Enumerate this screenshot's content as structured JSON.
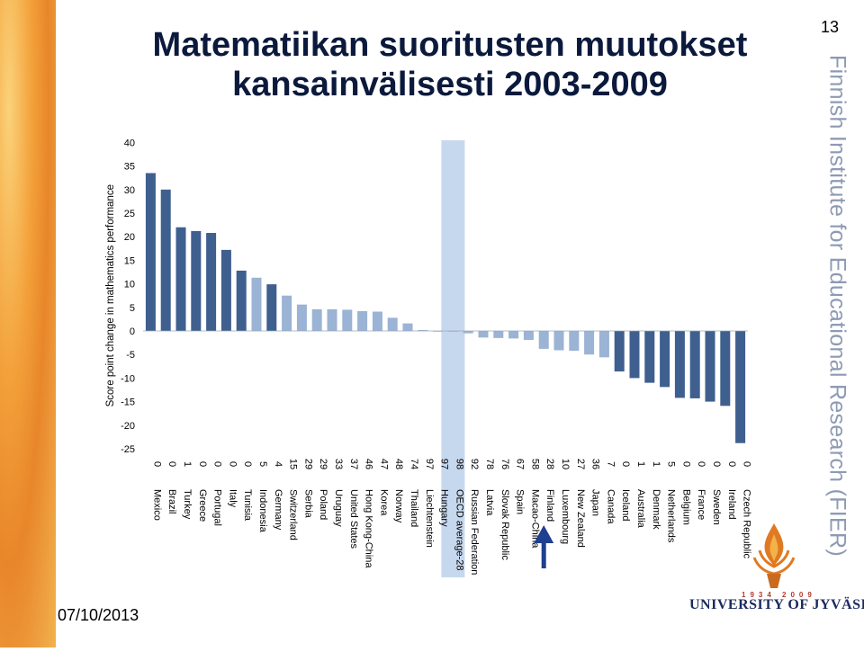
{
  "title_line1": "Matematiikan suoritusten muutokset",
  "title_line2": "kansainvälisesti 2003-2009",
  "page_number": "13",
  "date": "07/10/2013",
  "side_text": "Finnish Institute for Educational Research (FIER)",
  "logo": {
    "years": "1934  2009",
    "university": "UNIVERSITY OF JYVÄSKYLÄ"
  },
  "colors": {
    "dark_bar": "#3f5f8f",
    "light_bar": "#9bb3d4",
    "highlight": "#c6d8ee",
    "arrow": "#1f3f8f",
    "title": "#0b1a3c"
  },
  "chart_data": {
    "type": "bar",
    "ylabel": "Score point change in mathematics performance",
    "ylim": [
      -25,
      40
    ],
    "yticks": [
      40,
      35,
      30,
      25,
      20,
      15,
      10,
      5,
      0,
      -5,
      -10,
      -15,
      -20,
      -25
    ],
    "highlighted_category": "OECD average-28",
    "arrow_points_to": "Finland",
    "bars": [
      {
        "country": "Mexico",
        "num": "0",
        "value": 33.5,
        "significant": true
      },
      {
        "country": "Brazil",
        "num": "0",
        "value": 30,
        "significant": true
      },
      {
        "country": "Turkey",
        "num": "1",
        "value": 22,
        "significant": true
      },
      {
        "country": "Greece",
        "num": "0",
        "value": 21.2,
        "significant": true
      },
      {
        "country": "Portugal",
        "num": "0",
        "value": 20.8,
        "significant": true
      },
      {
        "country": "Italy",
        "num": "0",
        "value": 17.2,
        "significant": true
      },
      {
        "country": "Tunisia",
        "num": "0",
        "value": 12.8,
        "significant": true
      },
      {
        "country": "Indonesia",
        "num": "5",
        "value": 11.3,
        "significant": false
      },
      {
        "country": "Germany",
        "num": "4",
        "value": 9.9,
        "significant": true
      },
      {
        "country": "Switzerland",
        "num": "15",
        "value": 7.5,
        "significant": false
      },
      {
        "country": "Serbia",
        "num": "29",
        "value": 5.6,
        "significant": false
      },
      {
        "country": "Poland",
        "num": "29",
        "value": 4.6,
        "significant": false
      },
      {
        "country": "Uruguay",
        "num": "33",
        "value": 4.6,
        "significant": false
      },
      {
        "country": "United States",
        "num": "37",
        "value": 4.5,
        "significant": false
      },
      {
        "country": "Hong Kong-China",
        "num": "46",
        "value": 4.2,
        "significant": false
      },
      {
        "country": "Korea",
        "num": "47",
        "value": 4.1,
        "significant": false
      },
      {
        "country": "Norway",
        "num": "48",
        "value": 2.8,
        "significant": false
      },
      {
        "country": "Thailand",
        "num": "74",
        "value": 1.6,
        "significant": false
      },
      {
        "country": "Liechtenstein",
        "num": "97",
        "value": 0.2,
        "significant": false
      },
      {
        "country": "Hungary",
        "num": "97",
        "value": 0,
        "significant": false
      },
      {
        "country": "OECD average-28",
        "num": "98",
        "value": 0,
        "significant": false
      },
      {
        "country": "Russian Federation",
        "num": "92",
        "value": -0.5,
        "significant": false
      },
      {
        "country": "Latvia",
        "num": "78",
        "value": -1.4,
        "significant": false
      },
      {
        "country": "Slovak Republic",
        "num": "76",
        "value": -1.5,
        "significant": false
      },
      {
        "country": "Spain",
        "num": "67",
        "value": -1.6,
        "significant": false
      },
      {
        "country": "Macao-China",
        "num": "58",
        "value": -1.9,
        "significant": false
      },
      {
        "country": "Finland",
        "num": "28",
        "value": -3.8,
        "significant": false
      },
      {
        "country": "Luxembourg",
        "num": "10",
        "value": -4.1,
        "significant": false
      },
      {
        "country": "New Zealand",
        "num": "27",
        "value": -4.2,
        "significant": false
      },
      {
        "country": "Japan",
        "num": "36",
        "value": -5,
        "significant": false
      },
      {
        "country": "Canada",
        "num": "7",
        "value": -5.6,
        "significant": false
      },
      {
        "country": "Iceland",
        "num": "0",
        "value": -8.6,
        "significant": true
      },
      {
        "country": "Australia",
        "num": "1",
        "value": -10,
        "significant": true
      },
      {
        "country": "Denmark",
        "num": "1",
        "value": -11,
        "significant": true
      },
      {
        "country": "Netherlands",
        "num": "5",
        "value": -11.9,
        "significant": true
      },
      {
        "country": "Belgium",
        "num": "0",
        "value": -14.2,
        "significant": true
      },
      {
        "country": "France",
        "num": "0",
        "value": -14.3,
        "significant": true
      },
      {
        "country": "Sweden",
        "num": "0",
        "value": -15,
        "significant": true
      },
      {
        "country": "Ireland",
        "num": "0",
        "value": -15.9,
        "significant": true
      },
      {
        "country": "Czech Republic",
        "num": "0",
        "value": -23.8,
        "significant": true
      }
    ]
  }
}
